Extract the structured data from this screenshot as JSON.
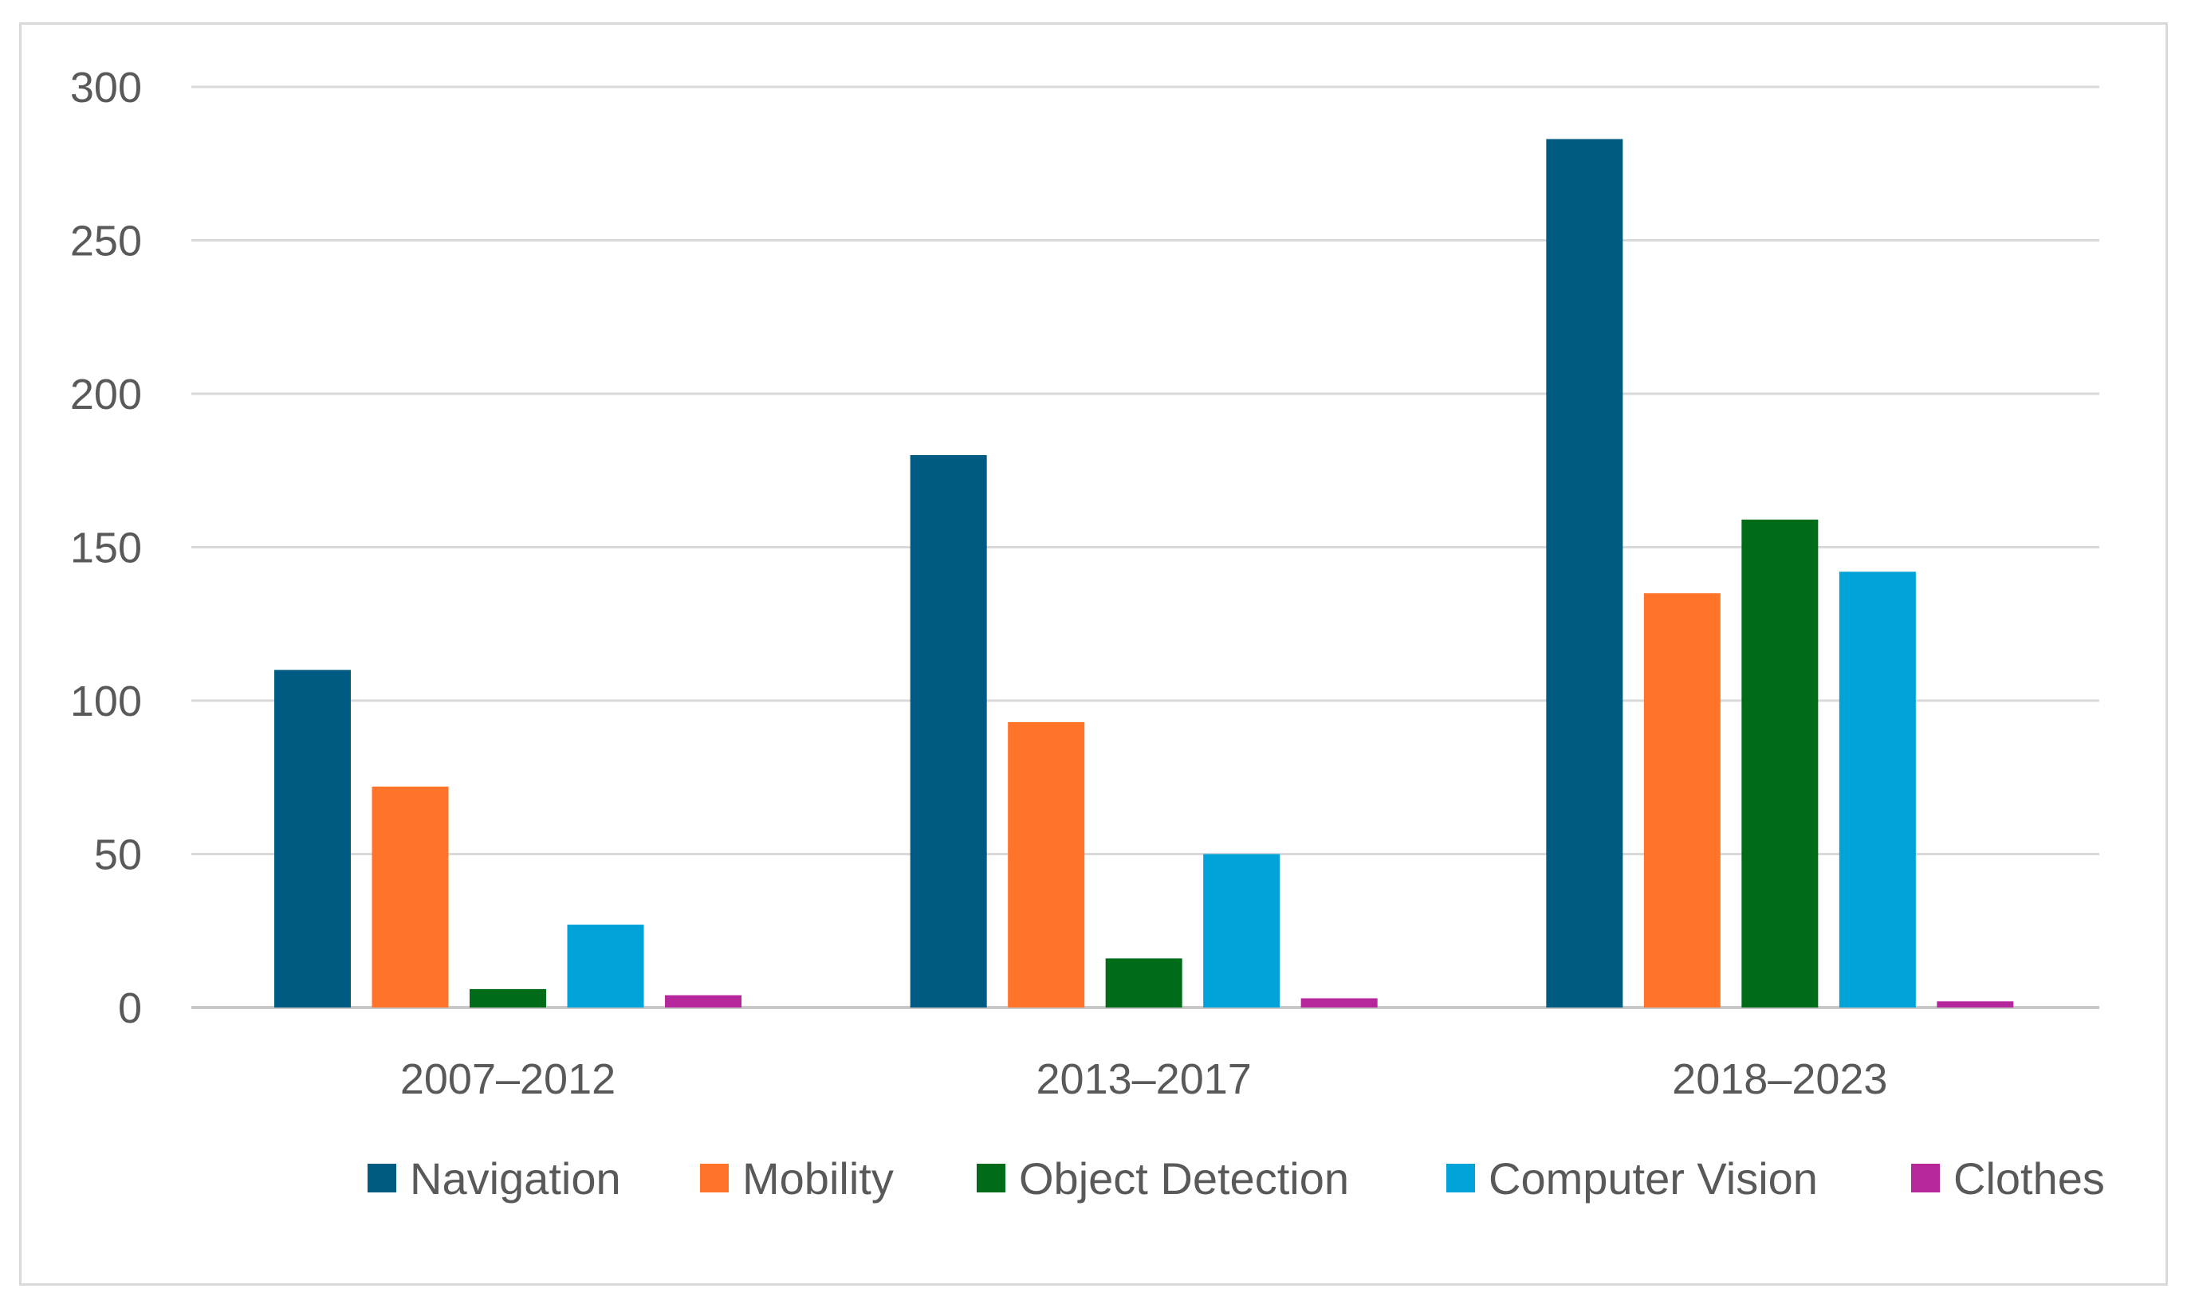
{
  "chart_data": {
    "type": "bar",
    "title": "",
    "xlabel": "",
    "ylabel": "",
    "categories": [
      "2007–2012",
      "2013–2017",
      "2018–2023"
    ],
    "ylim": [
      0,
      300
    ],
    "yticks": [
      0,
      50,
      100,
      150,
      200,
      250,
      300
    ],
    "grid": true,
    "legend_position": "bottom",
    "series": [
      {
        "name": "Navigation",
        "color": "#005b82",
        "values": [
          110,
          180,
          283
        ]
      },
      {
        "name": "Mobility",
        "color": "#ff7429",
        "values": [
          72,
          93,
          135
        ]
      },
      {
        "name": "Object Detection",
        "color": "#006b18",
        "values": [
          6,
          16,
          159
        ]
      },
      {
        "name": "Computer Vision",
        "color": "#00a2d8",
        "values": [
          27,
          50,
          142
        ]
      },
      {
        "name": "Clothes",
        "color": "#b5279b",
        "values": [
          4,
          3,
          2
        ]
      }
    ]
  }
}
